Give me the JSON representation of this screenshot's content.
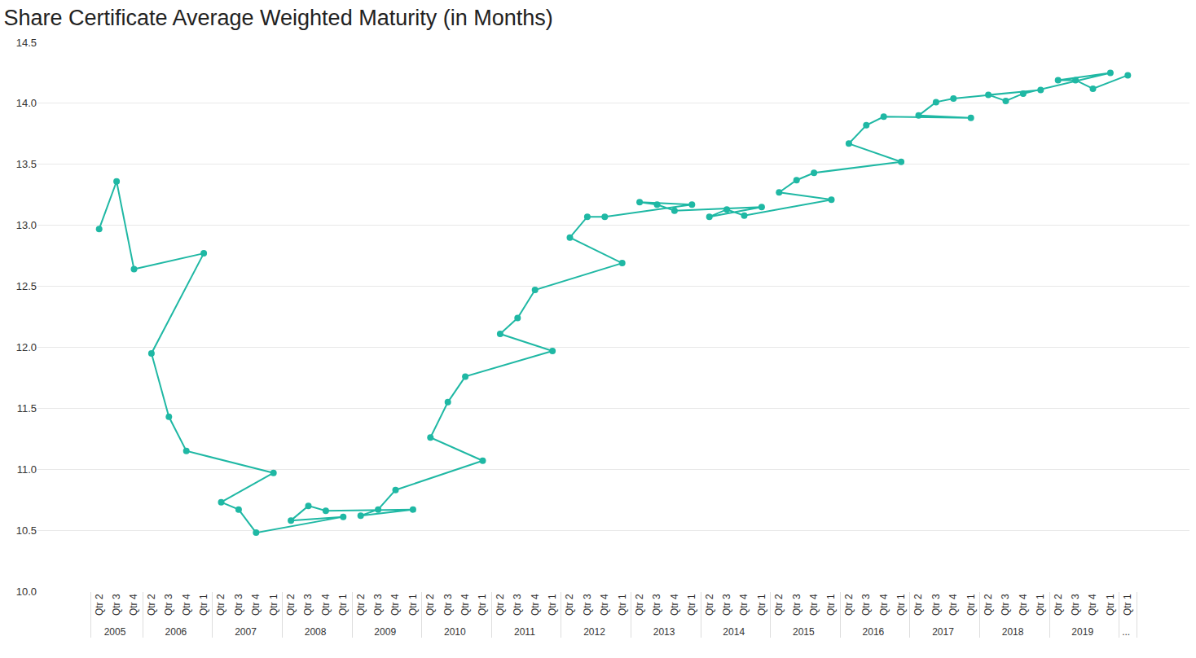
{
  "chart_data": {
    "type": "line",
    "title": "Share Certificate Average Weighted Maturity (in Months)",
    "categories": [
      [
        "2005",
        "Qtr 2"
      ],
      [
        "2005",
        "Qtr 3"
      ],
      [
        "2005",
        "Qtr 4"
      ],
      [
        "2006",
        "Qtr 1"
      ],
      [
        "2006",
        "Qtr 2"
      ],
      [
        "2006",
        "Qtr 3"
      ],
      [
        "2006",
        "Qtr 4"
      ],
      [
        "2007",
        "Qtr 1"
      ],
      [
        "2007",
        "Qtr 2"
      ],
      [
        "2007",
        "Qtr 3"
      ],
      [
        "2007",
        "Qtr 4"
      ],
      [
        "2008",
        "Qtr 1"
      ],
      [
        "2008",
        "Qtr 2"
      ],
      [
        "2008",
        "Qtr 3"
      ],
      [
        "2008",
        "Qtr 4"
      ],
      [
        "2009",
        "Qtr 1"
      ],
      [
        "2009",
        "Qtr 2"
      ],
      [
        "2009",
        "Qtr 3"
      ],
      [
        "2009",
        "Qtr 4"
      ],
      [
        "2010",
        "Qtr 1"
      ],
      [
        "2010",
        "Qtr 2"
      ],
      [
        "2010",
        "Qtr 3"
      ],
      [
        "2010",
        "Qtr 4"
      ],
      [
        "2011",
        "Qtr 1"
      ],
      [
        "2011",
        "Qtr 2"
      ],
      [
        "2011",
        "Qtr 3"
      ],
      [
        "2011",
        "Qtr 4"
      ],
      [
        "2012",
        "Qtr 1"
      ],
      [
        "2012",
        "Qtr 2"
      ],
      [
        "2012",
        "Qtr 3"
      ],
      [
        "2012",
        "Qtr 4"
      ],
      [
        "2013",
        "Qtr 1"
      ],
      [
        "2013",
        "Qtr 2"
      ],
      [
        "2013",
        "Qtr 3"
      ],
      [
        "2013",
        "Qtr 4"
      ],
      [
        "2014",
        "Qtr 1"
      ],
      [
        "2014",
        "Qtr 2"
      ],
      [
        "2014",
        "Qtr 3"
      ],
      [
        "2014",
        "Qtr 4"
      ],
      [
        "2015",
        "Qtr 1"
      ],
      [
        "2015",
        "Qtr 2"
      ],
      [
        "2015",
        "Qtr 3"
      ],
      [
        "2015",
        "Qtr 4"
      ],
      [
        "2016",
        "Qtr 1"
      ],
      [
        "2016",
        "Qtr 2"
      ],
      [
        "2016",
        "Qtr 3"
      ],
      [
        "2016",
        "Qtr 4"
      ],
      [
        "2017",
        "Qtr 1"
      ],
      [
        "2017",
        "Qtr 2"
      ],
      [
        "2017",
        "Qtr 3"
      ],
      [
        "2017",
        "Qtr 4"
      ],
      [
        "2018",
        "Qtr 1"
      ],
      [
        "2018",
        "Qtr 2"
      ],
      [
        "2018",
        "Qtr 3"
      ],
      [
        "2018",
        "Qtr 4"
      ],
      [
        "2019",
        "Qtr 1"
      ],
      [
        "2019",
        "Qtr 2"
      ],
      [
        "2019",
        "Qtr 3"
      ],
      [
        "2019",
        "Qtr 4"
      ],
      [
        "...",
        "Qtr 1"
      ]
    ],
    "values": [
      12.97,
      13.36,
      12.64,
      12.77,
      11.95,
      11.43,
      11.15,
      10.97,
      10.73,
      10.67,
      10.48,
      10.61,
      10.58,
      10.7,
      10.66,
      10.67,
      10.62,
      10.67,
      10.83,
      11.07,
      11.26,
      11.55,
      11.76,
      11.97,
      12.11,
      12.24,
      12.47,
      12.69,
      12.9,
      13.07,
      13.07,
      13.17,
      13.19,
      13.17,
      13.12,
      13.15,
      13.07,
      13.13,
      13.08,
      13.21,
      13.27,
      13.37,
      13.43,
      13.52,
      13.67,
      13.82,
      13.89,
      13.88,
      13.9,
      14.01,
      14.04,
      14.11,
      14.07,
      14.02,
      14.08,
      14.25,
      14.19,
      14.19,
      14.12,
      14.23
    ],
    "color": "#1fb8a4",
    "marker": "circle",
    "line_style": "solid",
    "ylim": [
      10,
      14.5
    ],
    "yticks": [
      {
        "value": 10,
        "label": "10.0"
      },
      10.5,
      {
        "value": 11,
        "label": "11.0"
      },
      11.5,
      {
        "value": 12,
        "label": "12.0"
      },
      12.5,
      {
        "value": 13,
        "label": "13.0"
      },
      13.5,
      {
        "value": 14,
        "label": "14.0"
      },
      14.5
    ],
    "grid": true
  }
}
